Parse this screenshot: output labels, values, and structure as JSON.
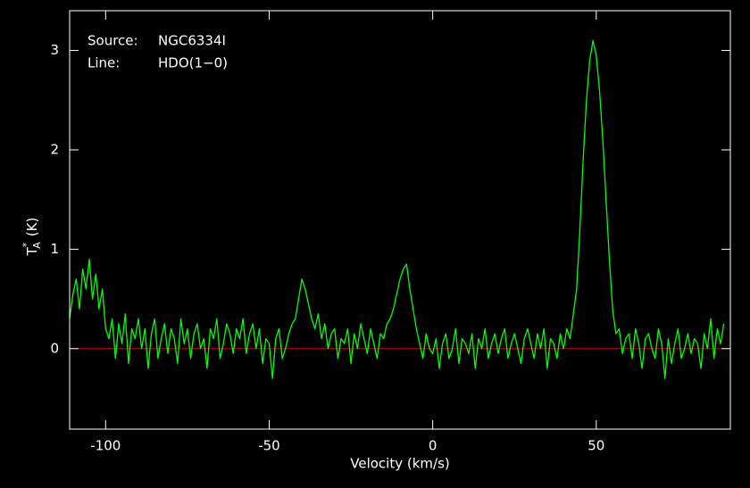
{
  "chart_data": {
    "type": "line",
    "annotations": [
      {
        "label": "Source:",
        "value": "NGC6334I"
      },
      {
        "label": "Line:",
        "value": "HDO(1−0)"
      }
    ],
    "xlabel": "Velocity (km/s)",
    "ylabel": {
      "symbol": "T",
      "superscript": "*",
      "subscript": "A",
      "unit": "(K)"
    },
    "xlim": [
      -111,
      91
    ],
    "ylim": [
      -0.81,
      3.4
    ],
    "xticks": [
      -100,
      -50,
      0,
      50
    ],
    "yticks": [
      0,
      1,
      2,
      3
    ],
    "baseline": {
      "value": 0,
      "color": "#cc0000"
    },
    "x": [
      -111,
      -110,
      -109,
      -108,
      -107,
      -106,
      -105,
      -104,
      -103,
      -102,
      -101,
      -100,
      -99,
      -98,
      -97,
      -96,
      -95,
      -94,
      -93,
      -92,
      -91,
      -90,
      -89,
      -88,
      -87,
      -86,
      -85,
      -84,
      -83,
      -82,
      -81,
      -80,
      -79,
      -78,
      -77,
      -76,
      -75,
      -74,
      -73,
      -72,
      -71,
      -70,
      -69,
      -68,
      -67,
      -66,
      -65,
      -64,
      -63,
      -62,
      -61,
      -60,
      -59,
      -58,
      -57,
      -56,
      -55,
      -54,
      -53,
      -52,
      -51,
      -50,
      -49,
      -48,
      -47,
      -46,
      -45,
      -44,
      -43,
      -42,
      -41,
      -40,
      -39,
      -38,
      -37,
      -36,
      -35,
      -34,
      -33,
      -32,
      -31,
      -30,
      -29,
      -28,
      -27,
      -26,
      -25,
      -24,
      -23,
      -22,
      -21,
      -20,
      -19,
      -18,
      -17,
      -16,
      -15,
      -14,
      -13,
      -12,
      -11,
      -10,
      -9,
      -8,
      -7,
      -6,
      -5,
      -4,
      -3,
      -2,
      -1,
      0,
      1,
      2,
      3,
      4,
      5,
      6,
      7,
      8,
      9,
      10,
      11,
      12,
      13,
      14,
      15,
      16,
      17,
      18,
      19,
      20,
      21,
      22,
      23,
      24,
      25,
      26,
      27,
      28,
      29,
      30,
      31,
      32,
      33,
      34,
      35,
      36,
      37,
      38,
      39,
      40,
      41,
      42,
      43,
      44,
      45,
      46,
      47,
      48,
      49,
      50,
      51,
      52,
      53,
      54,
      55,
      56,
      57,
      58,
      59,
      60,
      61,
      62,
      63,
      64,
      65,
      66,
      67,
      68,
      69,
      70,
      71,
      72,
      73,
      74,
      75,
      76,
      77,
      78,
      79,
      80,
      81,
      82,
      83,
      84,
      85,
      86,
      87,
      88,
      89
    ],
    "series": [
      {
        "color": "#00ff00",
        "values": [
          0.3,
          0.55,
          0.7,
          0.4,
          0.8,
          0.6,
          0.9,
          0.5,
          0.75,
          0.4,
          0.6,
          0.2,
          0.1,
          0.3,
          -0.1,
          0.25,
          0.05,
          0.35,
          -0.15,
          0.2,
          0.1,
          0.3,
          0.0,
          0.2,
          -0.2,
          0.15,
          0.3,
          -0.1,
          0.1,
          0.25,
          -0.05,
          0.2,
          0.1,
          -0.15,
          0.3,
          0.05,
          0.2,
          -0.1,
          0.15,
          0.25,
          0.0,
          0.1,
          -0.2,
          0.2,
          0.1,
          0.3,
          -0.1,
          0.05,
          0.25,
          0.15,
          -0.05,
          0.2,
          0.1,
          0.3,
          -0.05,
          0.15,
          0.25,
          0.0,
          0.2,
          -0.15,
          0.1,
          0.05,
          -0.3,
          0.1,
          0.2,
          -0.1,
          0.0,
          0.15,
          0.25,
          0.3,
          0.5,
          0.7,
          0.6,
          0.45,
          0.3,
          0.2,
          0.35,
          0.1,
          0.25,
          0.0,
          0.15,
          0.2,
          -0.1,
          0.1,
          0.05,
          0.2,
          -0.15,
          0.15,
          0.0,
          0.25,
          0.1,
          -0.05,
          0.2,
          0.05,
          -0.1,
          0.15,
          0.1,
          0.25,
          0.3,
          0.4,
          0.55,
          0.7,
          0.8,
          0.85,
          0.6,
          0.4,
          0.2,
          0.05,
          -0.1,
          0.15,
          0.0,
          -0.05,
          0.1,
          -0.2,
          0.05,
          0.15,
          -0.1,
          0.0,
          0.2,
          -0.15,
          0.1,
          0.05,
          -0.05,
          0.15,
          -0.2,
          0.1,
          0.0,
          0.2,
          -0.1,
          0.05,
          0.15,
          -0.05,
          0.1,
          0.2,
          -0.1,
          0.05,
          0.15,
          0.0,
          -0.15,
          0.1,
          0.2,
          0.05,
          -0.1,
          0.15,
          0.0,
          0.2,
          -0.2,
          0.1,
          0.05,
          -0.1,
          0.15,
          0.0,
          0.2,
          0.1,
          0.35,
          0.6,
          1.2,
          1.9,
          2.5,
          2.9,
          3.1,
          2.95,
          2.6,
          2.1,
          1.5,
          0.9,
          0.4,
          0.15,
          0.2,
          -0.05,
          0.1,
          0.15,
          -0.1,
          0.2,
          0.05,
          -0.2,
          0.1,
          0.15,
          0.0,
          -0.1,
          0.2,
          0.05,
          -0.3,
          0.1,
          -0.15,
          0.05,
          0.2,
          -0.1,
          0.0,
          0.15,
          -0.05,
          0.1,
          0.05,
          -0.2,
          0.15,
          0.0,
          0.3,
          -0.1,
          0.2,
          0.05,
          0.25
        ]
      }
    ]
  }
}
